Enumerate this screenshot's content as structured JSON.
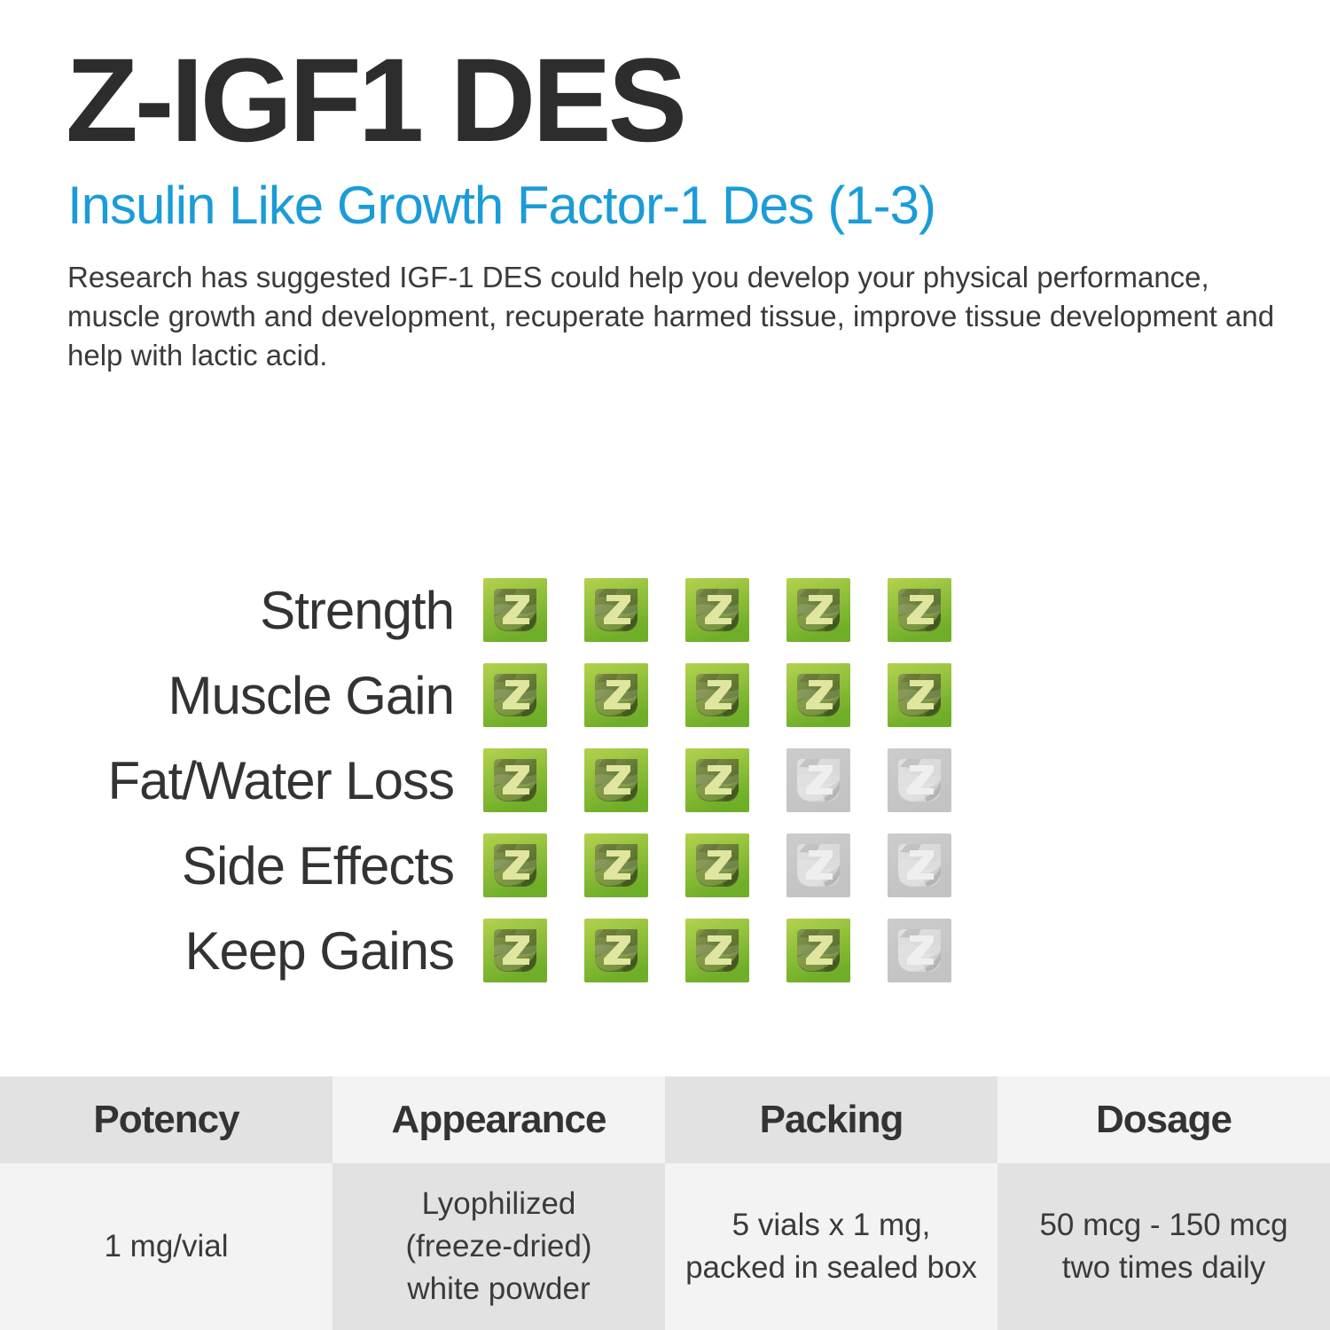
{
  "page": {
    "background": "#ffffff"
  },
  "header": {
    "title": "Z-IGF1 DES",
    "subtitle": "Insulin Like Growth Factor-1 Des (1-3)",
    "description": "Research has suggested IGF-1 DES could help you develop your physical performance, muscle growth and development, recuperate harmed tissue, improve tissue development and help with lactic acid.",
    "colors": {
      "title": "#2d2d2d",
      "subtitle": "#1a9cd8",
      "description": "#3a3a3a"
    }
  },
  "chart_data": {
    "type": "rating",
    "max_score": 5,
    "categories": [
      "Strength",
      "Muscle Gain",
      "Fat/Water Loss",
      "Side Effects",
      "Keep Gains"
    ],
    "values": [
      5,
      5,
      3,
      3,
      4
    ],
    "icon": "z-logo-icon",
    "label_color": "#333333",
    "filled_palette": {
      "outer_top": "#b3d24e",
      "outer_bottom": "#6fae28",
      "inner_top": "#87984e",
      "inner_bottom": "#45601f",
      "z": "#e0e6a0",
      "accent": "#9cb656"
    },
    "empty_palette": {
      "outer_top": "#cccccc",
      "outer_bottom": "#c3c3c3",
      "inner_top": "#e0e0e0",
      "inner_bottom": "#d3d3d3",
      "z": "#efefef",
      "accent": "#e7e7e7"
    }
  },
  "spec_table": {
    "cell_dark": "#e2e2e2",
    "cell_light": "#f3f3f3",
    "header_color": "#333333",
    "text_color": "#3a3a3a",
    "columns": [
      {
        "header": "Potency",
        "value": "1 mg/vial"
      },
      {
        "header": "Appearance",
        "value": "Lyophilized\n(freeze-dried)\nwhite powder"
      },
      {
        "header": "Packing",
        "value": "5 vials x 1 mg,\npacked in sealed box"
      },
      {
        "header": "Dosage",
        "value": "50 mcg - 150 mcg\ntwo times daily"
      }
    ]
  }
}
